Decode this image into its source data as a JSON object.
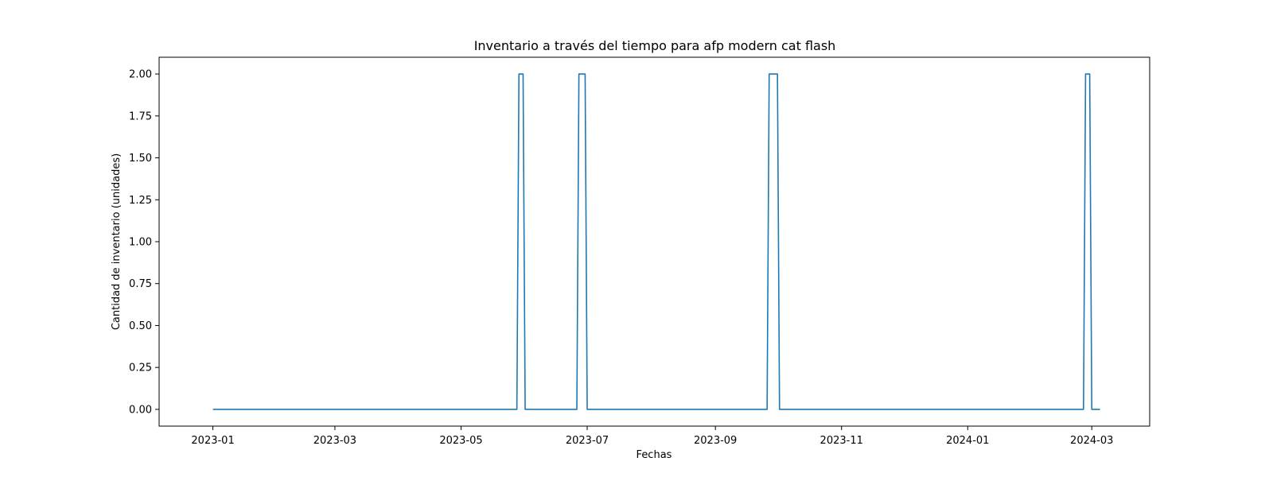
{
  "chart_data": {
    "type": "line",
    "title": "Inventario a través del tiempo para afp modern cat flash",
    "xlabel": "Fechas",
    "ylabel": "Cantidad de inventario (unidades)",
    "xlim": [
      "2022-12-06",
      "2024-03-29"
    ],
    "ylim": [
      -0.1,
      2.1
    ],
    "grid": false,
    "legend": "none",
    "line_color": "#1f77b4",
    "x_ticks": [
      "2023-01",
      "2023-03",
      "2023-05",
      "2023-07",
      "2023-09",
      "2023-11",
      "2024-01",
      "2024-03"
    ],
    "y_ticks": [
      "0.00",
      "0.25",
      "0.50",
      "0.75",
      "1.00",
      "1.25",
      "1.50",
      "1.75",
      "2.00"
    ],
    "series": [
      {
        "x": [
          "2023-01-01",
          "2023-05-28",
          "2023-05-29",
          "2023-05-31",
          "2023-06-01",
          "2023-06-26",
          "2023-06-27",
          "2023-06-30",
          "2023-07-01",
          "2023-09-26",
          "2023-09-27",
          "2023-10-01",
          "2023-10-02",
          "2024-02-26",
          "2024-02-27",
          "2024-02-29",
          "2024-03-01",
          "2024-03-05"
        ],
        "values": [
          0,
          0,
          2,
          2,
          0,
          0,
          2,
          2,
          0,
          0,
          2,
          2,
          0,
          0,
          2,
          2,
          0,
          0
        ]
      }
    ]
  }
}
